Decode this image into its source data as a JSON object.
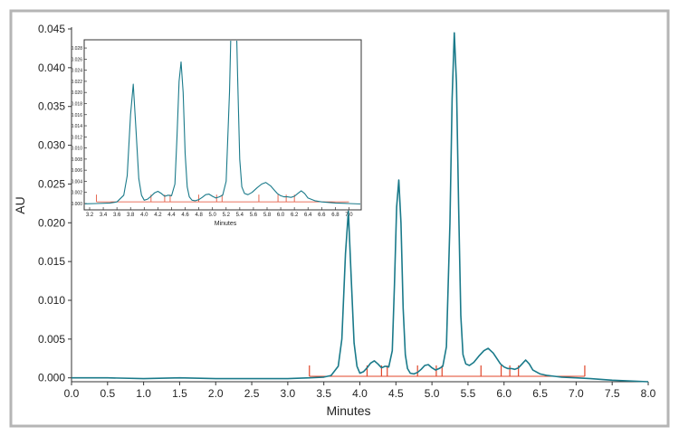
{
  "chart_data": [
    {
      "type": "line",
      "xlabel": "Minutes",
      "ylabel": "AU",
      "xlim": [
        0.0,
        8.0
      ],
      "ylim": [
        -0.0005,
        0.045
      ],
      "x_ticks": [
        "0.0",
        "0.5",
        "1.0",
        "1.5",
        "2.0",
        "2.5",
        "3.0",
        "3.5",
        "4.0",
        "4.5",
        "5.0",
        "5.5",
        "6.0",
        "6.5",
        "7.0",
        "7.5",
        "8.0"
      ],
      "y_ticks": [
        "0.000",
        "0.005",
        "0.010",
        "0.015",
        "0.020",
        "0.025",
        "0.030",
        "0.035",
        "0.040",
        "0.045"
      ],
      "line_color": "#1a7a8a",
      "marker_color": "#e0462a",
      "grid": false,
      "series": [
        {
          "x": [
            0.0,
            0.5,
            1.0,
            1.5,
            2.0,
            2.5,
            3.0,
            3.3,
            3.5,
            3.6,
            3.7,
            3.75,
            3.8,
            3.84,
            3.88,
            3.92,
            3.96,
            4.0,
            4.05,
            4.1,
            4.15,
            4.2,
            4.25,
            4.3,
            4.35,
            4.4,
            4.45,
            4.48,
            4.51,
            4.54,
            4.57,
            4.6,
            4.63,
            4.66,
            4.7,
            4.75,
            4.8,
            4.85,
            4.9,
            4.95,
            5.0,
            5.05,
            5.1,
            5.15,
            5.2,
            5.25,
            5.28,
            5.31,
            5.34,
            5.37,
            5.4,
            5.43,
            5.47,
            5.52,
            5.58,
            5.65,
            5.72,
            5.78,
            5.85,
            5.9,
            5.95,
            6.0,
            6.05,
            6.1,
            6.15,
            6.2,
            6.25,
            6.3,
            6.35,
            6.4,
            6.5,
            6.6,
            6.7,
            6.8,
            7.0,
            7.2,
            7.5,
            8.0
          ],
          "y": [
            0.0,
            0.0,
            -0.0001,
            0.0,
            -0.0001,
            -0.0001,
            -0.0001,
            0.0,
            0.0001,
            0.0003,
            0.0015,
            0.005,
            0.016,
            0.0215,
            0.013,
            0.0045,
            0.0015,
            0.0006,
            0.0008,
            0.0013,
            0.0019,
            0.0022,
            0.0018,
            0.0013,
            0.0015,
            0.0014,
            0.0035,
            0.012,
            0.022,
            0.0255,
            0.02,
            0.009,
            0.003,
            0.0012,
            0.0006,
            0.0005,
            0.0007,
            0.0011,
            0.0016,
            0.0017,
            0.0013,
            0.001,
            0.0012,
            0.0015,
            0.004,
            0.02,
            0.036,
            0.0445,
            0.038,
            0.022,
            0.008,
            0.003,
            0.0018,
            0.0016,
            0.002,
            0.0028,
            0.0035,
            0.0038,
            0.0032,
            0.0025,
            0.0018,
            0.0014,
            0.0012,
            0.0012,
            0.0011,
            0.0013,
            0.0018,
            0.0023,
            0.0018,
            0.001,
            0.0005,
            0.0003,
            0.0002,
            0.0001,
            0.0,
            -0.0001,
            -0.0003,
            -0.0005
          ]
        }
      ],
      "integration_marks_x": [
        3.3,
        4.1,
        4.3,
        4.38,
        4.8,
        5.06,
        5.14,
        5.68,
        5.96,
        6.08,
        6.2,
        7.12
      ],
      "baseline_range": [
        3.3,
        7.12
      ]
    },
    {
      "type": "line",
      "inset": true,
      "xlabel": "Minutes",
      "ylabel": "",
      "xlim": [
        3.2,
        7.1
      ],
      "ylim": [
        0.0,
        0.0285
      ],
      "x_ticks": [
        "3.2",
        "3.4",
        "3.6",
        "3.8",
        "4.0",
        "4.2",
        "4.4",
        "4.6",
        "4.8",
        "5.0",
        "5.2",
        "5.4",
        "5.6",
        "5.8",
        "6.0",
        "6.2",
        "6.4",
        "6.6",
        "6.8",
        "7.0"
      ],
      "y_ticks": [
        "0.000",
        "0.002",
        "0.004",
        "0.006",
        "0.008",
        "0.010",
        "0.012",
        "0.014",
        "0.016",
        "0.018",
        "0.020",
        "0.022",
        "0.024",
        "0.026",
        "0.028"
      ]
    }
  ]
}
